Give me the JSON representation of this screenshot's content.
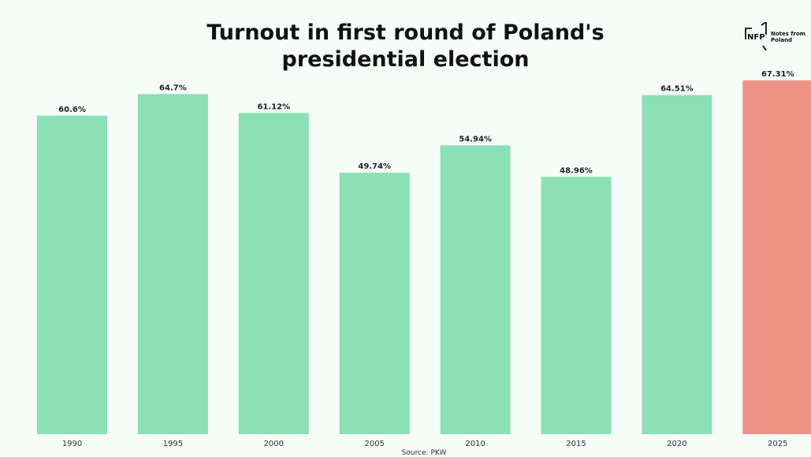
{
  "header": {
    "title_line_1": "Turnout in first round of Poland's",
    "title_line_2": "presidential election"
  },
  "logo": {
    "mark_text": "NFP",
    "name_line_1": "Notes from",
    "name_line_2": "Poland"
  },
  "source": "Source: PKW",
  "colors": {
    "bar": "#8be0b6",
    "highlight": "#f09186",
    "background": "#f6fcf7"
  },
  "chart_data": {
    "type": "bar",
    "title": "Turnout in first round of Poland's presidential election",
    "categories": [
      "1990",
      "1995",
      "2000",
      "2005",
      "2010",
      "2015",
      "2020",
      "2025"
    ],
    "values": [
      60.6,
      64.7,
      61.12,
      49.74,
      54.94,
      48.96,
      64.51,
      67.31
    ],
    "data_labels": [
      "60.6%",
      "64.7%",
      "61.12%",
      "49.74%",
      "54.94%",
      "48.96%",
      "64.51%",
      "67.31%"
    ],
    "highlight_category": "2025",
    "xlabel": "",
    "ylabel": "",
    "ylim": [
      0,
      67.31
    ],
    "grid": false,
    "legend": "none"
  }
}
